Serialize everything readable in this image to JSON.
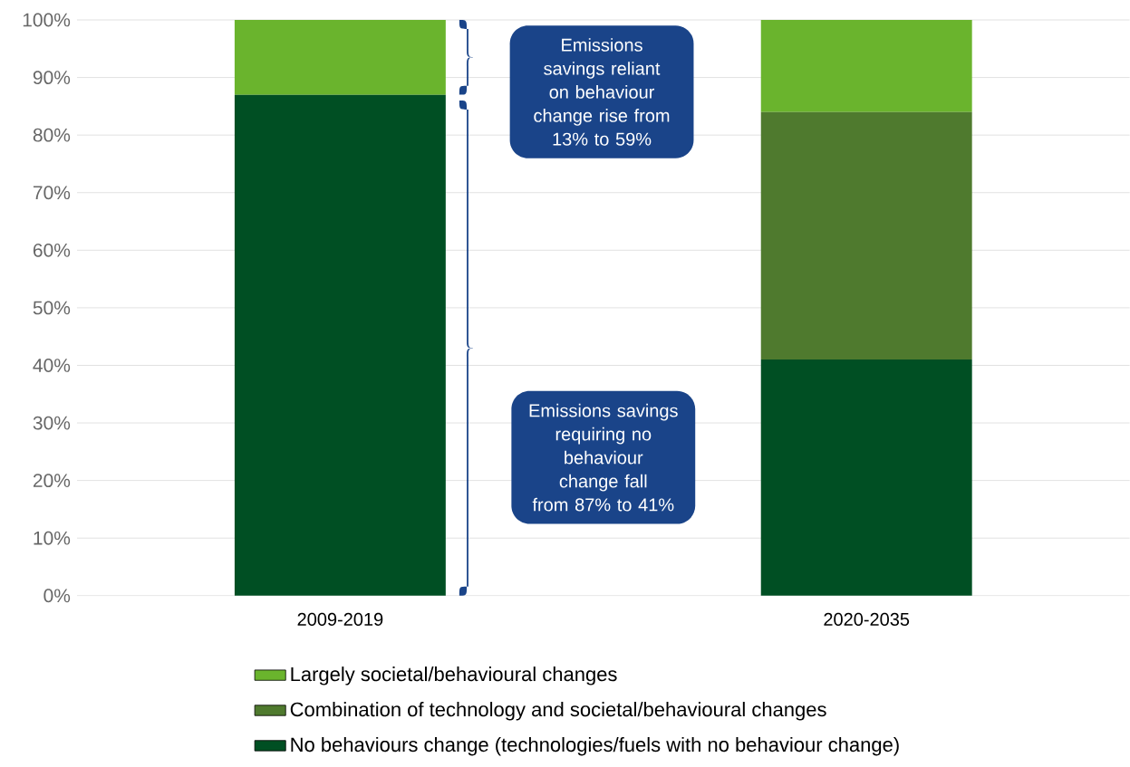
{
  "chart_data": {
    "type": "bar",
    "stacked": true,
    "categories": [
      "2009-2019",
      "2020-2035"
    ],
    "series": [
      {
        "name": "No behaviours change (technologies/fuels with no behaviour change)",
        "color": "#004f23",
        "values": [
          87,
          41
        ]
      },
      {
        "name": "Combination of technology and societal/behavioural changes",
        "color": "#4f7a2e",
        "values": [
          0,
          43
        ]
      },
      {
        "name": "Largely societal/behavioural changes",
        "color": "#6ab42d",
        "values": [
          13,
          16
        ]
      }
    ],
    "ylim": [
      0,
      100
    ],
    "yticks": [
      {
        "value": 0,
        "label": "0%"
      },
      {
        "value": 10,
        "label": "10%"
      },
      {
        "value": 20,
        "label": "20%"
      },
      {
        "value": 30,
        "label": "30%"
      },
      {
        "value": 40,
        "label": "40%"
      },
      {
        "value": 50,
        "label": "50%"
      },
      {
        "value": 60,
        "label": "60%"
      },
      {
        "value": 70,
        "label": "70%"
      },
      {
        "value": 80,
        "label": "80%"
      },
      {
        "value": 90,
        "label": "90%"
      },
      {
        "value": 100,
        "label": "100%"
      }
    ],
    "grid": "y",
    "legend": "bottom",
    "annotations": [
      "Emissions savings reliant on behaviour change rise from 13% to 59%",
      "Emissions savings requiring no behaviour change fall from 87% to 41%"
    ]
  }
}
